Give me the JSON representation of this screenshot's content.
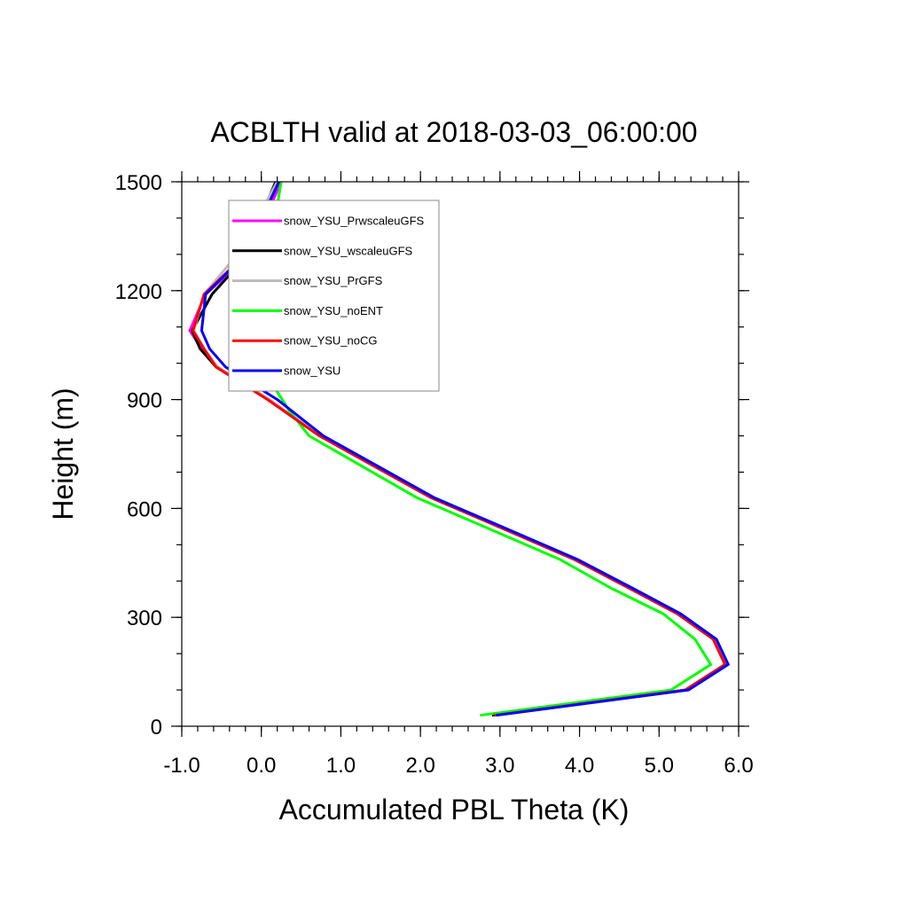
{
  "chart_data": {
    "type": "line",
    "title": "ACBLTH valid at 2018-03-03_06:00:00",
    "xlabel": "Accumulated PBL Theta (K)",
    "ylabel": "Height (m)",
    "xlim": [
      -1.0,
      6.0
    ],
    "ylim": [
      0,
      1500
    ],
    "xticks": [
      "-1.0",
      "0.0",
      "1.0",
      "2.0",
      "3.0",
      "4.0",
      "5.0",
      "6.0"
    ],
    "yticks": [
      "0",
      "300",
      "600",
      "900",
      "1200",
      "1500"
    ],
    "legend_position": "top-left",
    "grid": false,
    "series": [
      {
        "name": "snow_YSU_PrwscaleuGFS",
        "color": "#ff00ff",
        "x": [
          2.95,
          5.35,
          5.85,
          5.7,
          5.25,
          4.65,
          3.95,
          3.0,
          2.15,
          0.75,
          0.1,
          -0.55,
          -0.75,
          -0.9,
          -0.7,
          -0.15,
          0.25
        ],
        "y": [
          30,
          100,
          170,
          240,
          310,
          380,
          460,
          550,
          630,
          800,
          900,
          990,
          1040,
          1090,
          1190,
          1300,
          1500
        ]
      },
      {
        "name": "snow_YSU_wscaleuGFS",
        "color": "#000000",
        "x": [
          2.9,
          5.33,
          5.83,
          5.68,
          5.23,
          4.63,
          3.93,
          2.98,
          2.13,
          0.73,
          0.08,
          -0.57,
          -0.77,
          -0.87,
          -0.62,
          -0.25,
          0.18
        ],
        "y": [
          30,
          100,
          170,
          240,
          310,
          380,
          460,
          550,
          630,
          800,
          900,
          990,
          1040,
          1090,
          1190,
          1280,
          1500
        ]
      },
      {
        "name": "snow_YSU_PrGFS",
        "color": "#bbbbbb",
        "x": [
          2.95,
          5.35,
          5.85,
          5.7,
          5.25,
          4.65,
          3.95,
          3.0,
          2.15,
          0.75,
          0.1,
          -0.55,
          -0.72,
          -0.85,
          -0.72,
          -0.3,
          0.2
        ],
        "y": [
          30,
          100,
          170,
          240,
          310,
          380,
          460,
          550,
          630,
          800,
          900,
          990,
          1040,
          1090,
          1190,
          1300,
          1500
        ]
      },
      {
        "name": "snow_YSU_noENT",
        "color": "#00ff00",
        "x": [
          2.75,
          5.15,
          5.65,
          5.45,
          5.05,
          4.4,
          3.75,
          2.8,
          1.95,
          0.6,
          0.35,
          0.0,
          -0.15,
          -0.25,
          -0.05,
          0.1,
          0.25
        ],
        "y": [
          30,
          100,
          170,
          240,
          310,
          380,
          460,
          550,
          630,
          800,
          870,
          990,
          1040,
          1090,
          1200,
          1300,
          1500
        ]
      },
      {
        "name": "snow_YSU_noCG",
        "color": "#ff0000",
        "x": [
          2.93,
          5.33,
          5.83,
          5.68,
          5.23,
          4.63,
          3.93,
          2.98,
          2.13,
          0.73,
          0.08,
          -0.57,
          -0.72,
          -0.86,
          -0.72,
          -0.2,
          0.22
        ],
        "y": [
          30,
          100,
          170,
          240,
          310,
          380,
          460,
          550,
          630,
          800,
          900,
          990,
          1040,
          1090,
          1190,
          1300,
          1500
        ]
      },
      {
        "name": "snow_YSU",
        "color": "#0000ff",
        "x": [
          2.95,
          5.37,
          5.87,
          5.72,
          5.27,
          4.67,
          3.97,
          3.02,
          2.17,
          0.78,
          0.2,
          -0.45,
          -0.65,
          -0.75,
          -0.7,
          -0.2,
          0.22
        ],
        "y": [
          30,
          100,
          170,
          240,
          310,
          380,
          460,
          550,
          630,
          800,
          900,
          990,
          1040,
          1090,
          1190,
          1300,
          1500
        ]
      }
    ]
  }
}
